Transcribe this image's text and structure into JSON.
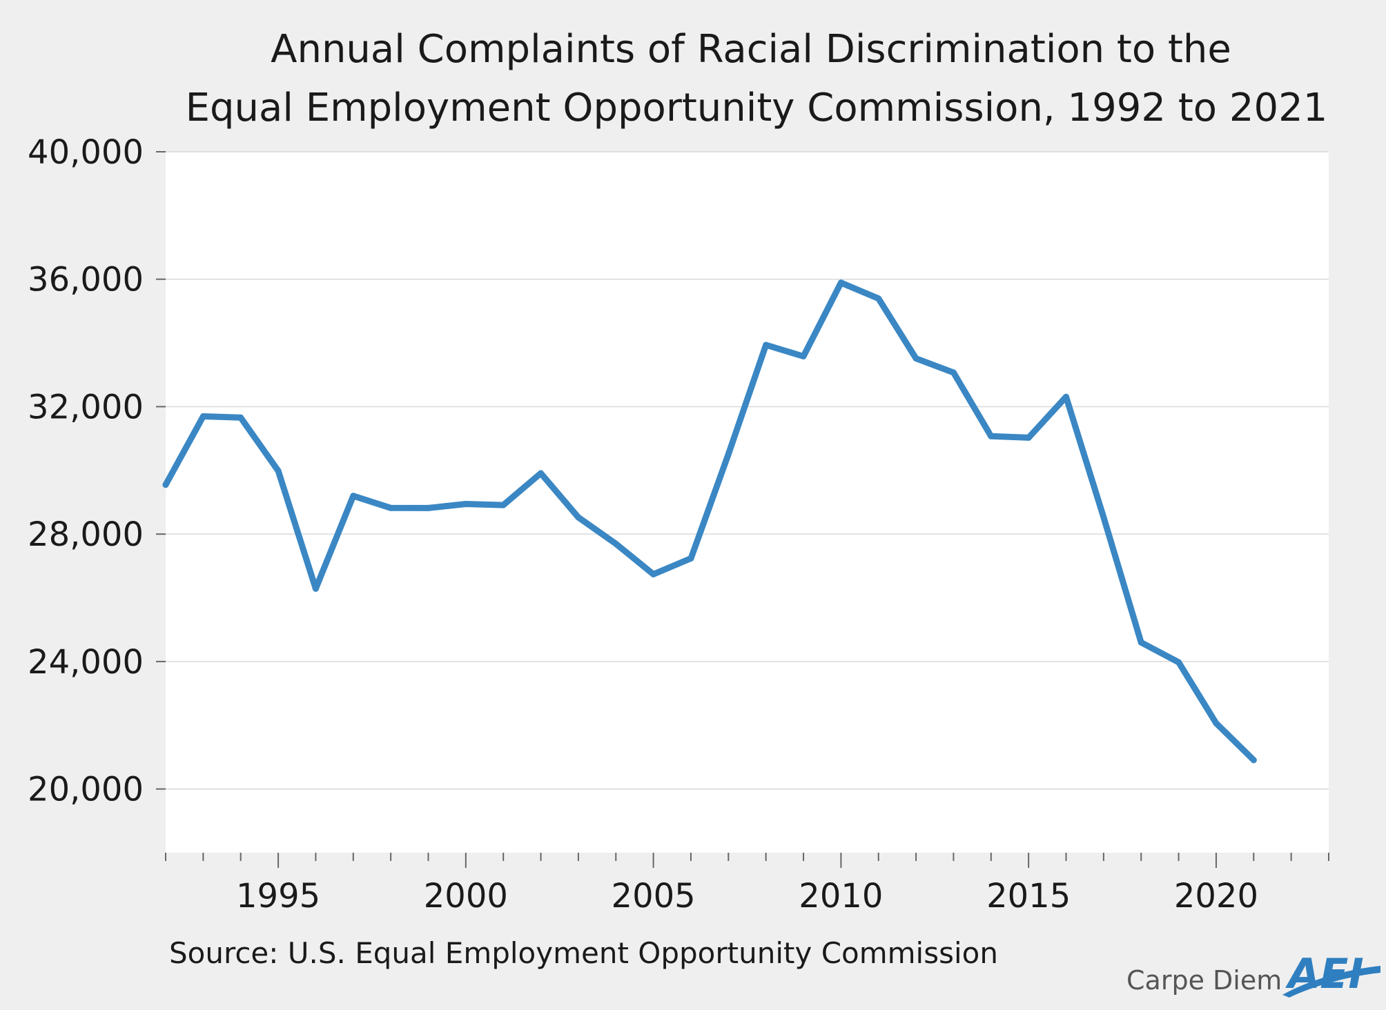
{
  "chart_data": {
    "type": "line",
    "title": [
      "Annual Complaints of Racial Discrimination to the",
      "Equal Employment Opportunity Commission, 1992 to 2021"
    ],
    "xlabel": "",
    "ylabel": "",
    "xlim": [
      1992,
      2023
    ],
    "ylim": [
      18000,
      40000
    ],
    "y_ticks": [
      20000,
      24000,
      28000,
      32000,
      36000,
      40000
    ],
    "y_tick_labels": [
      "20,000",
      "24,000",
      "28,000",
      "32,000",
      "36,000",
      "40,000"
    ],
    "x_ticks": [
      1995,
      2000,
      2005,
      2010,
      2015,
      2020
    ],
    "x_tick_labels": [
      "1995",
      "2000",
      "2005",
      "2010",
      "2015",
      "2020"
    ],
    "grid": "horizontal",
    "series": [
      {
        "color": "#3a87c4",
        "x": [
          1992,
          1993,
          1994,
          1995,
          1996,
          1997,
          1998,
          1999,
          2000,
          2001,
          2002,
          2003,
          2004,
          2005,
          2006,
          2007,
          2008,
          2009,
          2010,
          2011,
          2012,
          2013,
          2014,
          2015,
          2016,
          2017,
          2018,
          2019,
          2020,
          2021
        ],
        "values": [
          29548,
          31695,
          31656,
          29986,
          26287,
          29199,
          28820,
          28819,
          28945,
          28912,
          29910,
          28526,
          27696,
          26740,
          27238,
          30510,
          33937,
          33579,
          35890,
          35395,
          33512,
          33068,
          31073,
          31027,
          32309,
          28528,
          24600,
          23976,
          22064,
          20908
        ]
      }
    ]
  },
  "source": "Source: U.S. Equal Employment Opportunity Commission",
  "brand": {
    "text": "Carpe Diem",
    "logo": "AEI"
  },
  "colors": {
    "background": "#efefef",
    "plot_area": "#ffffff",
    "gridline": "#d9d9d9",
    "line": "#3a87c4",
    "logo": "#2f7fc0"
  }
}
